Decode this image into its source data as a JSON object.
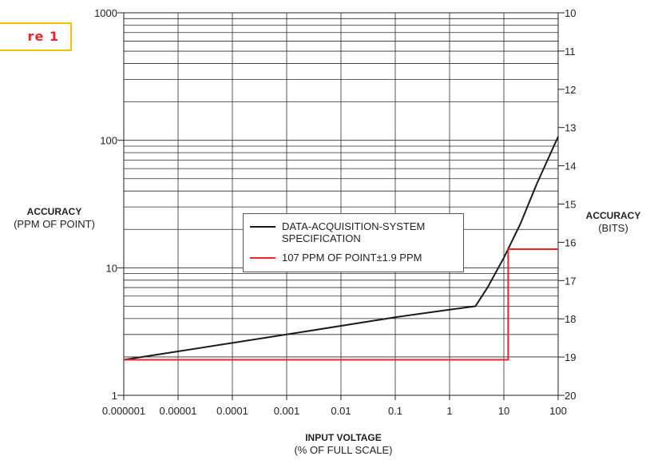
{
  "figure_label": "re 1",
  "chart_data": {
    "type": "line",
    "title": "",
    "x_axis": {
      "label": "INPUT VOLTAGE",
      "sublabel": "(% OF FULL SCALE)",
      "scale": "log",
      "range": [
        1e-06,
        100
      ],
      "ticks": [
        1e-06,
        1e-05,
        0.0001,
        0.001,
        0.01,
        0.1,
        1,
        10,
        100
      ],
      "tick_labels": [
        "0.000001",
        "0.00001",
        "0.0001",
        "0.001",
        "0.01",
        "0.1",
        "1",
        "10",
        "100"
      ]
    },
    "y_axis_left": {
      "label": "ACCURACY",
      "sublabel": "(PPM OF POINT)",
      "scale": "log",
      "range": [
        1,
        1000
      ],
      "ticks": [
        1,
        10,
        100,
        1000
      ],
      "tick_labels": [
        "1",
        "10",
        "100",
        "1000"
      ]
    },
    "y_axis_right": {
      "label": "ACCURACY",
      "sublabel": "(BITS)",
      "range": [
        20,
        10
      ],
      "ticks": [
        10,
        11,
        12,
        13,
        14,
        15,
        16,
        17,
        18,
        19,
        20
      ],
      "tick_labels": [
        "10",
        "11",
        "12",
        "13",
        "14",
        "15",
        "16",
        "17",
        "18",
        "19",
        "20"
      ]
    },
    "grid": true,
    "legend_placement": "center-right",
    "series": [
      {
        "name": "DATA-ACQUISITION-SYSTEM SPECIFICATION",
        "color": "#1a1a1a",
        "points": [
          [
            1e-06,
            1.9
          ],
          [
            0.001,
            3.0
          ],
          [
            0.1,
            4.1
          ],
          [
            1,
            4.7
          ],
          [
            3,
            5.0
          ],
          [
            5,
            7.0
          ],
          [
            10,
            12
          ],
          [
            20,
            22
          ],
          [
            40,
            45
          ],
          [
            100,
            107
          ]
        ]
      },
      {
        "name": "107 PPM OF POINT±1.9 PPM",
        "color": "#e8262b",
        "points": [
          [
            1e-06,
            1.9
          ],
          [
            12,
            1.9
          ],
          [
            12,
            14
          ],
          [
            100,
            14
          ]
        ]
      }
    ]
  }
}
